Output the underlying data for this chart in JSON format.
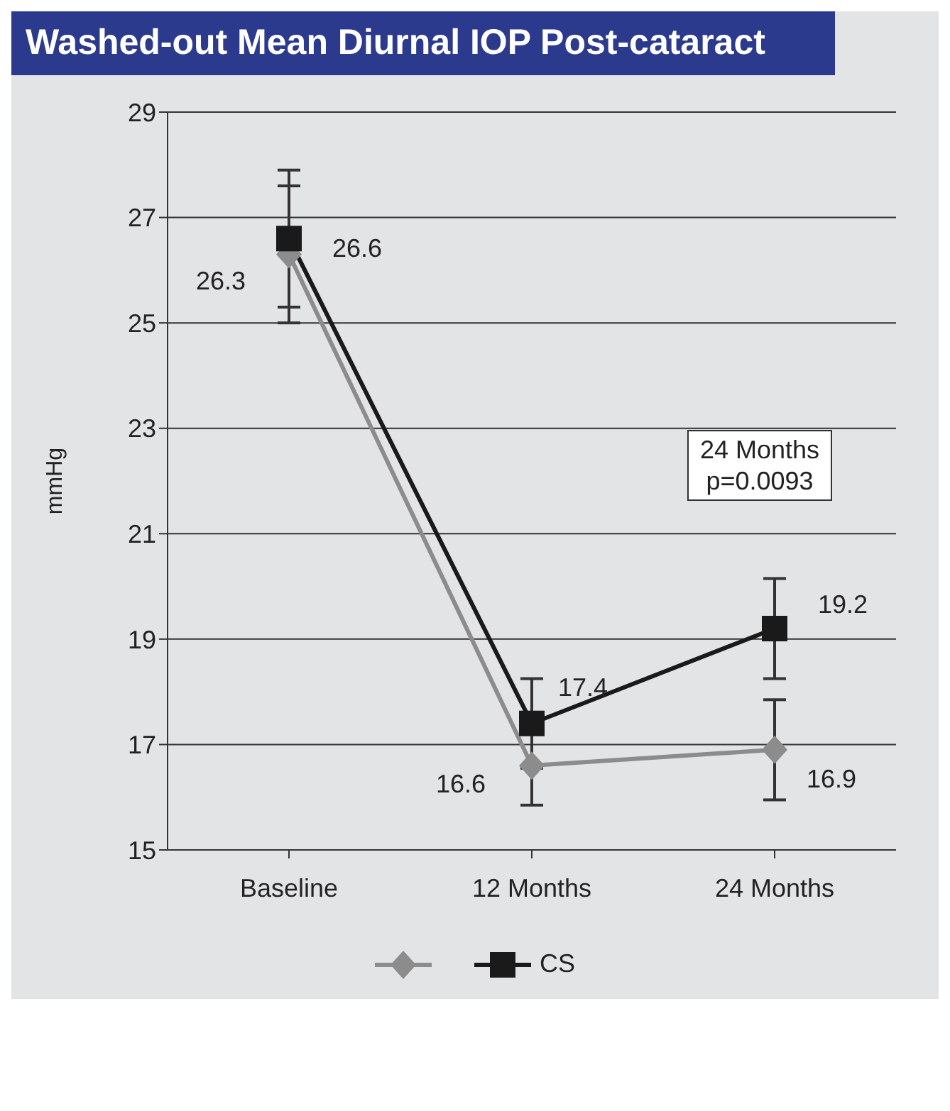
{
  "chart_data": {
    "type": "line",
    "title": "Washed-out Mean Diurnal IOP Post-cataract",
    "ylabel": "mmHg",
    "categories": [
      "Baseline",
      "12 Months",
      "24 Months"
    ],
    "series": [
      {
        "color": "#8c8c8c",
        "marker": "diamond",
        "values": [
          26.3,
          16.6,
          16.9
        ],
        "errors": [
          1.3,
          0.75,
          0.95
        ]
      },
      {
        "name": "CS",
        "color": "#1a1a1a",
        "marker": "square",
        "values": [
          26.6,
          17.4,
          19.2
        ],
        "errors": [
          1.3,
          0.85,
          0.95
        ]
      }
    ],
    "ylim": [
      15,
      29
    ],
    "yticks": [
      15,
      17,
      19,
      21,
      23,
      25,
      27,
      29
    ],
    "grid": "y",
    "legend": "bottom",
    "data_labels": true,
    "annotations": [
      "24 Months",
      "p=0.0093"
    ]
  }
}
